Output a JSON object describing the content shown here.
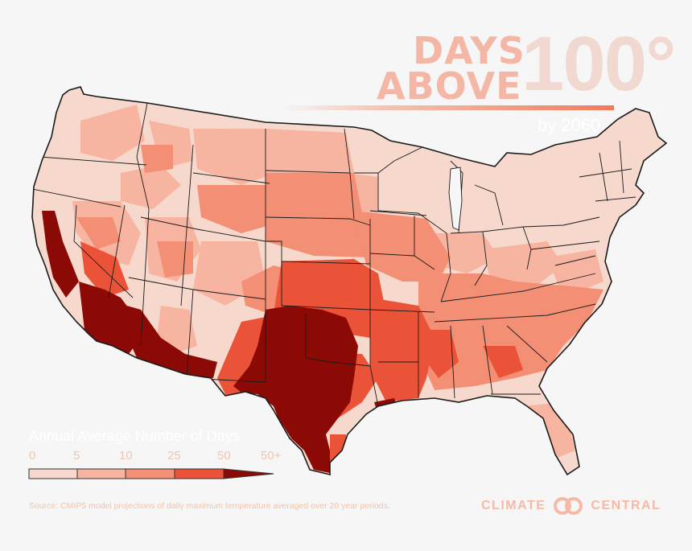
{
  "title": {
    "line1": "DAYS",
    "line2": "ABOVE",
    "number": "100°",
    "subtitle": "by 2060"
  },
  "legend": {
    "title": "Annual Average Number of Days",
    "ticks": [
      "0",
      "5",
      "10",
      "25",
      "50",
      "50+"
    ],
    "bins": [
      {
        "from": 0,
        "to": 5,
        "color": "#f6d8cc"
      },
      {
        "from": 5,
        "to": 10,
        "color": "#f7b4a1"
      },
      {
        "from": 10,
        "to": 25,
        "color": "#f28f74"
      },
      {
        "from": 25,
        "to": 50,
        "color": "#ea5337"
      },
      {
        "from": 50,
        "to": null,
        "color": "#8b0a06"
      }
    ]
  },
  "source": "Source: CMIP5 model projections of daily maximum temperature averaged over 20 year periods.",
  "brand": {
    "left": "CLIMATE",
    "right": "CENTRAL",
    "logo_icon": "interlocking-circles-icon"
  }
}
